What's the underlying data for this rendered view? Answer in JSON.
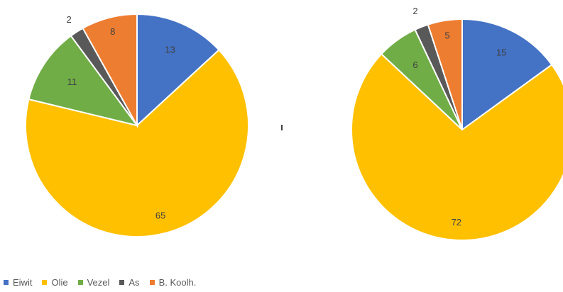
{
  "chart_data": [
    {
      "type": "pie",
      "categories": [
        "Eiwit",
        "Olie",
        "Vezel",
        "As",
        "B. Koolh."
      ],
      "values": [
        13,
        65,
        11,
        2,
        8
      ],
      "colors": [
        "#4472C4",
        "#FFC000",
        "#70AD47",
        "#595959",
        "#ED7D31"
      ]
    },
    {
      "type": "pie",
      "categories": [
        "Eiwit",
        "Olie",
        "Vezel",
        "As",
        "B. Koolh."
      ],
      "values": [
        15,
        72,
        6,
        2,
        5
      ],
      "colors": [
        "#4472C4",
        "#FFC000",
        "#70AD47",
        "#595959",
        "#ED7D31"
      ]
    }
  ],
  "legend": {
    "placement": "bottom-left",
    "items": [
      {
        "label": "Eiwit",
        "color": "#4472C4"
      },
      {
        "label": "Olie",
        "color": "#FFC000"
      },
      {
        "label": "Vezel",
        "color": "#70AD47"
      },
      {
        "label": "As",
        "color": "#595959"
      },
      {
        "label": "B. Koolh.",
        "color": "#ED7D31"
      }
    ]
  }
}
